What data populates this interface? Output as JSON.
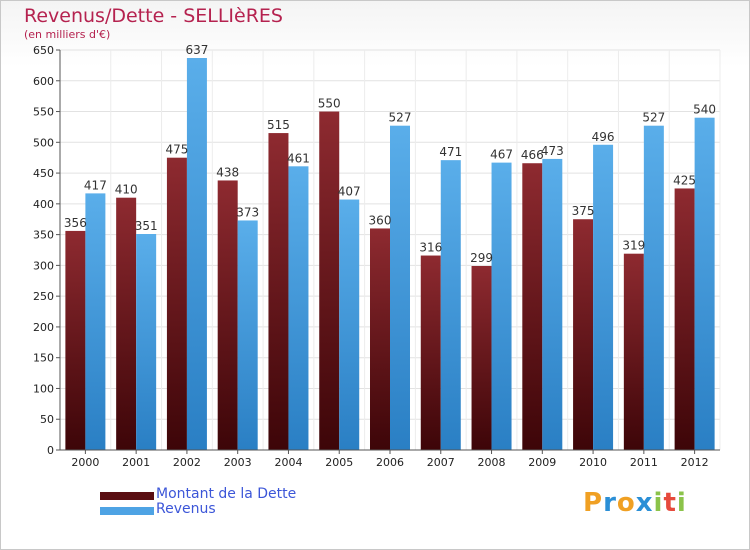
{
  "title": "Revenus/Dette - SELLIèRES",
  "subtitle": "(en milliers d'€)",
  "logo": {
    "letters": [
      "P",
      "r",
      "o",
      "x",
      "i",
      "t",
      "i"
    ],
    "colors": [
      "#f0a023",
      "#2b8fd6",
      "#f0a023",
      "#2b8fd6",
      "#8bc34a",
      "#e64a3c",
      "#8bc34a"
    ]
  },
  "chart_data": {
    "type": "bar",
    "categories": [
      "2000",
      "2001",
      "2002",
      "2003",
      "2004",
      "2005",
      "2006",
      "2007",
      "2008",
      "2009",
      "2010",
      "2011",
      "2012"
    ],
    "series": [
      {
        "name": "Montant de la Dette",
        "values": [
          356,
          410,
          475,
          438,
          515,
          550,
          360,
          316,
          299,
          466,
          375,
          319,
          425
        ],
        "color": "#7a1c22"
      },
      {
        "name": "Revenus",
        "values": [
          417,
          351,
          637,
          373,
          461,
          407,
          527,
          471,
          467,
          473,
          496,
          527,
          540
        ],
        "color": "#4ea3e4"
      }
    ],
    "ylim": [
      0,
      650
    ],
    "yticks": [
      0,
      50,
      100,
      150,
      200,
      250,
      300,
      350,
      400,
      450,
      500,
      550,
      600,
      650
    ],
    "grid": true,
    "legend": "bottom-left"
  }
}
